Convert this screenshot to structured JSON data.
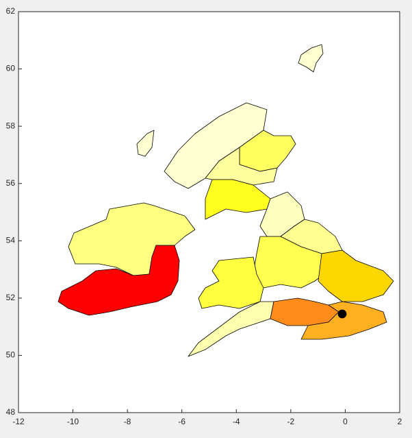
{
  "chart_data": {
    "type": "map",
    "xlim": [
      -12,
      2
    ],
    "xticks": [
      -12,
      -10,
      -8,
      -6,
      -4,
      -2,
      0,
      2
    ],
    "ylim": [
      48,
      62
    ],
    "yticks": [
      48,
      50,
      52,
      54,
      56,
      58,
      60,
      62
    ]
  }
}
